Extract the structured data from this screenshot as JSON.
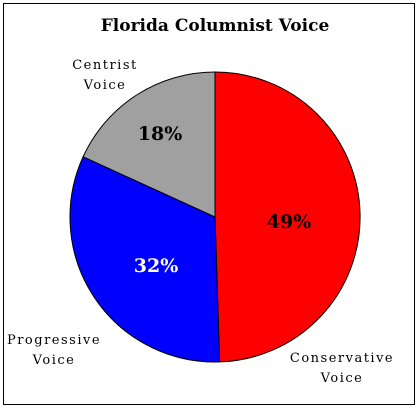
{
  "chart_data": {
    "type": "pie",
    "title": "Florida Columnist Voice",
    "slices": [
      {
        "label": [
          "Conservative",
          "Voice"
        ],
        "value": 49,
        "display": "49%",
        "color": "#ff0000",
        "text_color": "#000000"
      },
      {
        "label": [
          "Progressive",
          "Voice"
        ],
        "value": 32,
        "display": "32%",
        "color": "#0000ff",
        "text_color": "#ffffff"
      },
      {
        "label": [
          "Centrist",
          "Voice"
        ],
        "value": 18,
        "display": "18%",
        "color": "#a0a0a0",
        "text_color": "#000000"
      }
    ],
    "start_angle_deg": 0,
    "direction": "clockwise",
    "legend": "none"
  }
}
